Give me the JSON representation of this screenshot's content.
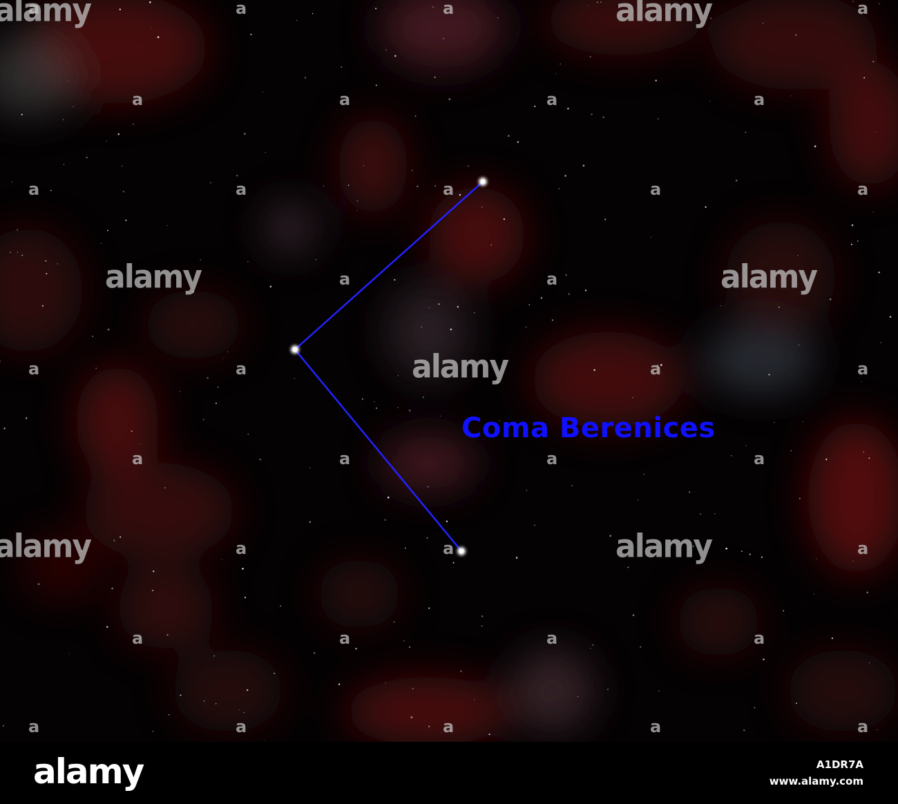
{
  "image": {
    "constellation_name": "Coma Berenices",
    "label_color": "#1010ff",
    "line_color": "#2020ff",
    "star_color": "#ffffff",
    "watermark_text": "alamy",
    "watermark_mark": "a"
  },
  "footer": {
    "logo": "alamy",
    "image_id": "A1DR7A",
    "url": "www.alamy.com"
  }
}
